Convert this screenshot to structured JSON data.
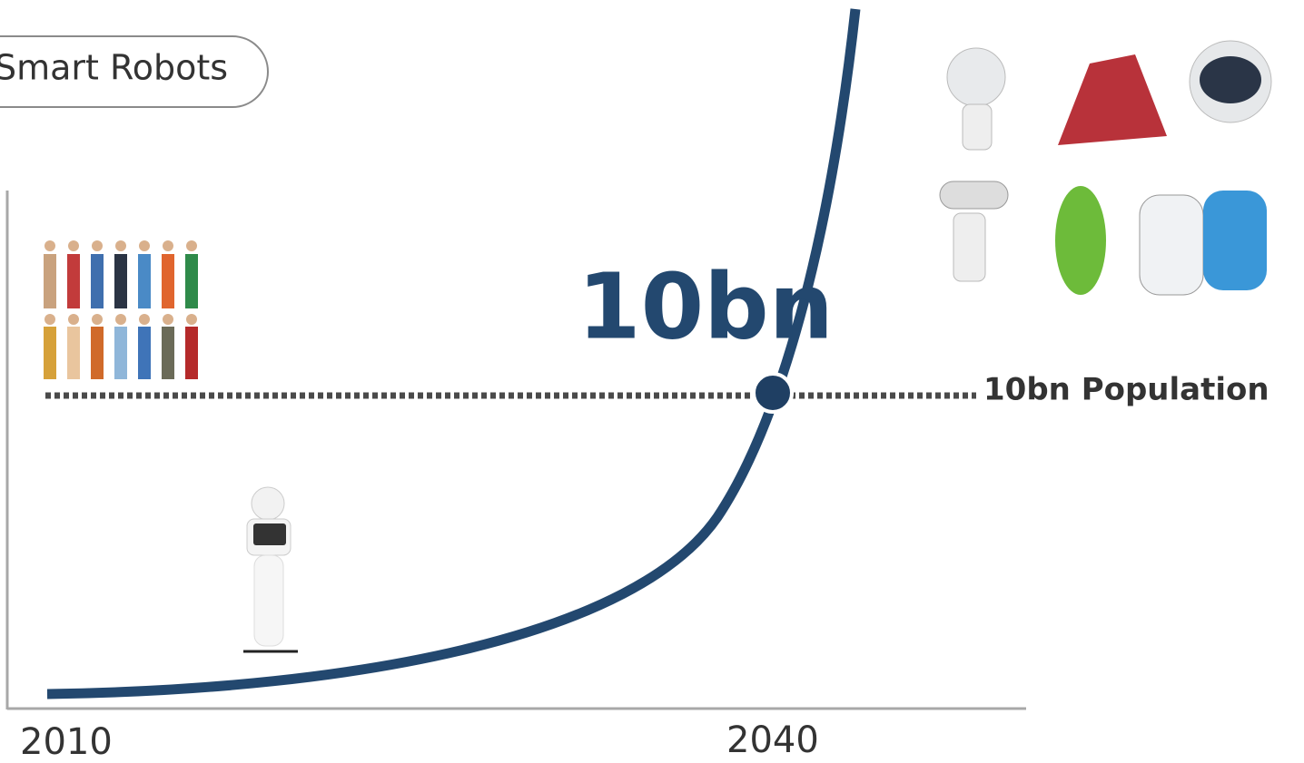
{
  "label_box": "Smart Robots",
  "headline": "10bn",
  "reference_line": {
    "label": "10bn Population"
  },
  "x_labels": [
    "2010",
    "2040"
  ]
}
